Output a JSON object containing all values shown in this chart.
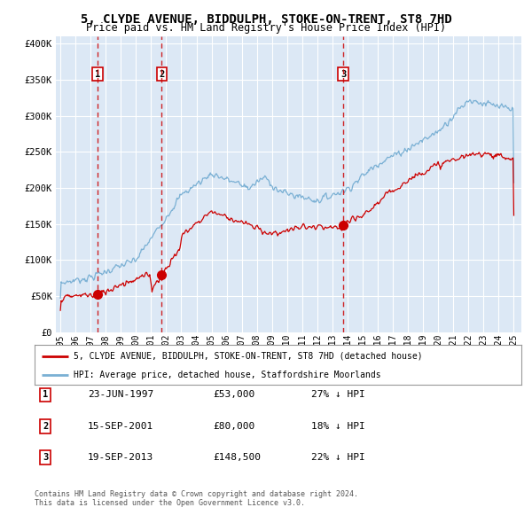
{
  "title": "5, CLYDE AVENUE, BIDDULPH, STOKE-ON-TRENT, ST8 7HD",
  "subtitle": "Price paid vs. HM Land Registry's House Price Index (HPI)",
  "title_fontsize": 10,
  "subtitle_fontsize": 8.5,
  "ylabel_ticks": [
    "£0",
    "£50K",
    "£100K",
    "£150K",
    "£200K",
    "£250K",
    "£300K",
    "£350K",
    "£400K"
  ],
  "ytick_values": [
    0,
    50000,
    100000,
    150000,
    200000,
    250000,
    300000,
    350000,
    400000
  ],
  "ylim": [
    0,
    410000
  ],
  "xlim_start": 1994.7,
  "xlim_end": 2025.5,
  "plot_bg_color": "#dce8f5",
  "grid_color": "#ffffff",
  "red_line_color": "#cc0000",
  "blue_line_color": "#7ab0d4",
  "sale_marker_color": "#cc0000",
  "dashed_line_color": "#cc0000",
  "sales": [
    {
      "year": 1997.47,
      "price": 53000,
      "label": "1",
      "date": "23-JUN-1997",
      "price_str": "£53,000",
      "hpi_str": "27% ↓ HPI"
    },
    {
      "year": 2001.7,
      "price": 80000,
      "label": "2",
      "date": "15-SEP-2001",
      "price_str": "£80,000",
      "hpi_str": "18% ↓ HPI"
    },
    {
      "year": 2013.71,
      "price": 148500,
      "label": "3",
      "date": "19-SEP-2013",
      "price_str": "£148,500",
      "hpi_str": "22% ↓ HPI"
    }
  ],
  "legend_line1": "5, CLYDE AVENUE, BIDDULPH, STOKE-ON-TRENT, ST8 7HD (detached house)",
  "legend_line2": "HPI: Average price, detached house, Staffordshire Moorlands",
  "footer1": "Contains HM Land Registry data © Crown copyright and database right 2024.",
  "footer2": "This data is licensed under the Open Government Licence v3.0.",
  "xticks": [
    1995,
    1996,
    1997,
    1998,
    1999,
    2000,
    2001,
    2002,
    2003,
    2004,
    2005,
    2006,
    2007,
    2008,
    2009,
    2010,
    2011,
    2012,
    2013,
    2014,
    2015,
    2016,
    2017,
    2018,
    2019,
    2020,
    2021,
    2022,
    2023,
    2024,
    2025
  ],
  "xtick_labels": [
    "95",
    "96",
    "97",
    "98",
    "99",
    "00",
    "01",
    "02",
    "03",
    "04",
    "05",
    "06",
    "07",
    "08",
    "09",
    "10",
    "11",
    "12",
    "13",
    "14",
    "15",
    "16",
    "17",
    "18",
    "19",
    "20",
    "21",
    "22",
    "23",
    "24",
    "25"
  ]
}
